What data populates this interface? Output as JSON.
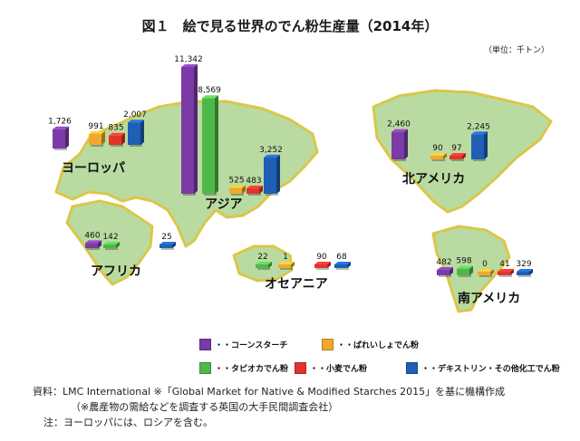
{
  "header": {
    "title": "図１　絵で見る世界のでん粉生産量（2014年）",
    "unit": "（単位：千トン）"
  },
  "colors": {
    "corn": "#7b3aa6",
    "tapioca": "#4fb74a",
    "potato": "#f0a92c",
    "wheat": "#e0352b",
    "other": "#1f5fb5",
    "land": "#b9dba1",
    "land_edge": "#d9c74a"
  },
  "legend": [
    {
      "key": "corn",
      "label": "・・コーンスターチ"
    },
    {
      "key": "potato",
      "label": "・・ばれいしょでん粉"
    },
    {
      "key": "tapioca",
      "label": "・・タピオカでん粉"
    },
    {
      "key": "wheat",
      "label": "・・小麦でん粉"
    },
    {
      "key": "other",
      "label": "・・デキストリン・その他化工でん粉"
    }
  ],
  "chart_data": {
    "type": "bar",
    "title": "図１　絵で見る世界のでん粉生産量（2014年）",
    "unit": "（単位：千トン）",
    "series_order": [
      "コーンスターチ",
      "タピオカでん粉",
      "ばれいしょでん粉",
      "小麦でん粉",
      "デキストリン・その他化工でん粉"
    ],
    "regions": [
      {
        "name": "ヨーロッパ",
        "values": [
          {
            "series": "コーンスターチ",
            "value": 1726
          },
          {
            "series": "ばれいしょでん粉",
            "value": 991
          },
          {
            "series": "小麦でん粉",
            "value": 835
          },
          {
            "series": "デキストリン・その他化工でん粉",
            "value": 2007
          }
        ]
      },
      {
        "name": "アジア",
        "values": [
          {
            "series": "コーンスターチ",
            "value": 11342
          },
          {
            "series": "タピオカでん粉",
            "value": 8569
          },
          {
            "series": "ばれいしょでん粉",
            "value": 525
          },
          {
            "series": "小麦でん粉",
            "value": 483
          },
          {
            "series": "デキストリン・その他化工でん粉",
            "value": 3252
          }
        ]
      },
      {
        "name": "アフリカ",
        "values": [
          {
            "series": "コーンスターチ",
            "value": 460
          },
          {
            "series": "タピオカでん粉",
            "value": 142
          },
          {
            "series": "デキストリン・その他化工でん粉",
            "value": 25
          }
        ]
      },
      {
        "name": "オセアニア",
        "values": [
          {
            "series": "タピオカでん粉",
            "value": 22
          },
          {
            "series": "ばれいしょでん粉",
            "value": 1
          },
          {
            "series": "小麦でん粉",
            "value": 90
          },
          {
            "series": "デキストリン・その他化工でん粉",
            "value": 68
          }
        ]
      },
      {
        "name": "北アメリカ",
        "values": [
          {
            "series": "コーンスターチ",
            "value": 2460
          },
          {
            "series": "ばれいしょでん粉",
            "value": 90
          },
          {
            "series": "小麦でん粉",
            "value": 97
          },
          {
            "series": "デキストリン・その他化工でん粉",
            "value": 2245
          }
        ]
      },
      {
        "name": "南アメリカ",
        "values": [
          {
            "series": "コーンスターチ",
            "value": 482
          },
          {
            "series": "タピオカでん粉",
            "value": 598
          },
          {
            "series": "ばれいしょでん粉",
            "value": 0
          },
          {
            "series": "小麦でん粉",
            "value": 41
          },
          {
            "series": "デキストリン・その他化工でん粉",
            "value": 329
          }
        ]
      }
    ]
  },
  "notes": {
    "source": "資料：LMC International ※「Global Market for Native & Modified Starches 2015」を基に機構作成",
    "source_sub": "（※農産物の需給などを調査する英国の大手民間調査会社）",
    "note": "注：ヨーロッパには、ロシアを含む。"
  }
}
